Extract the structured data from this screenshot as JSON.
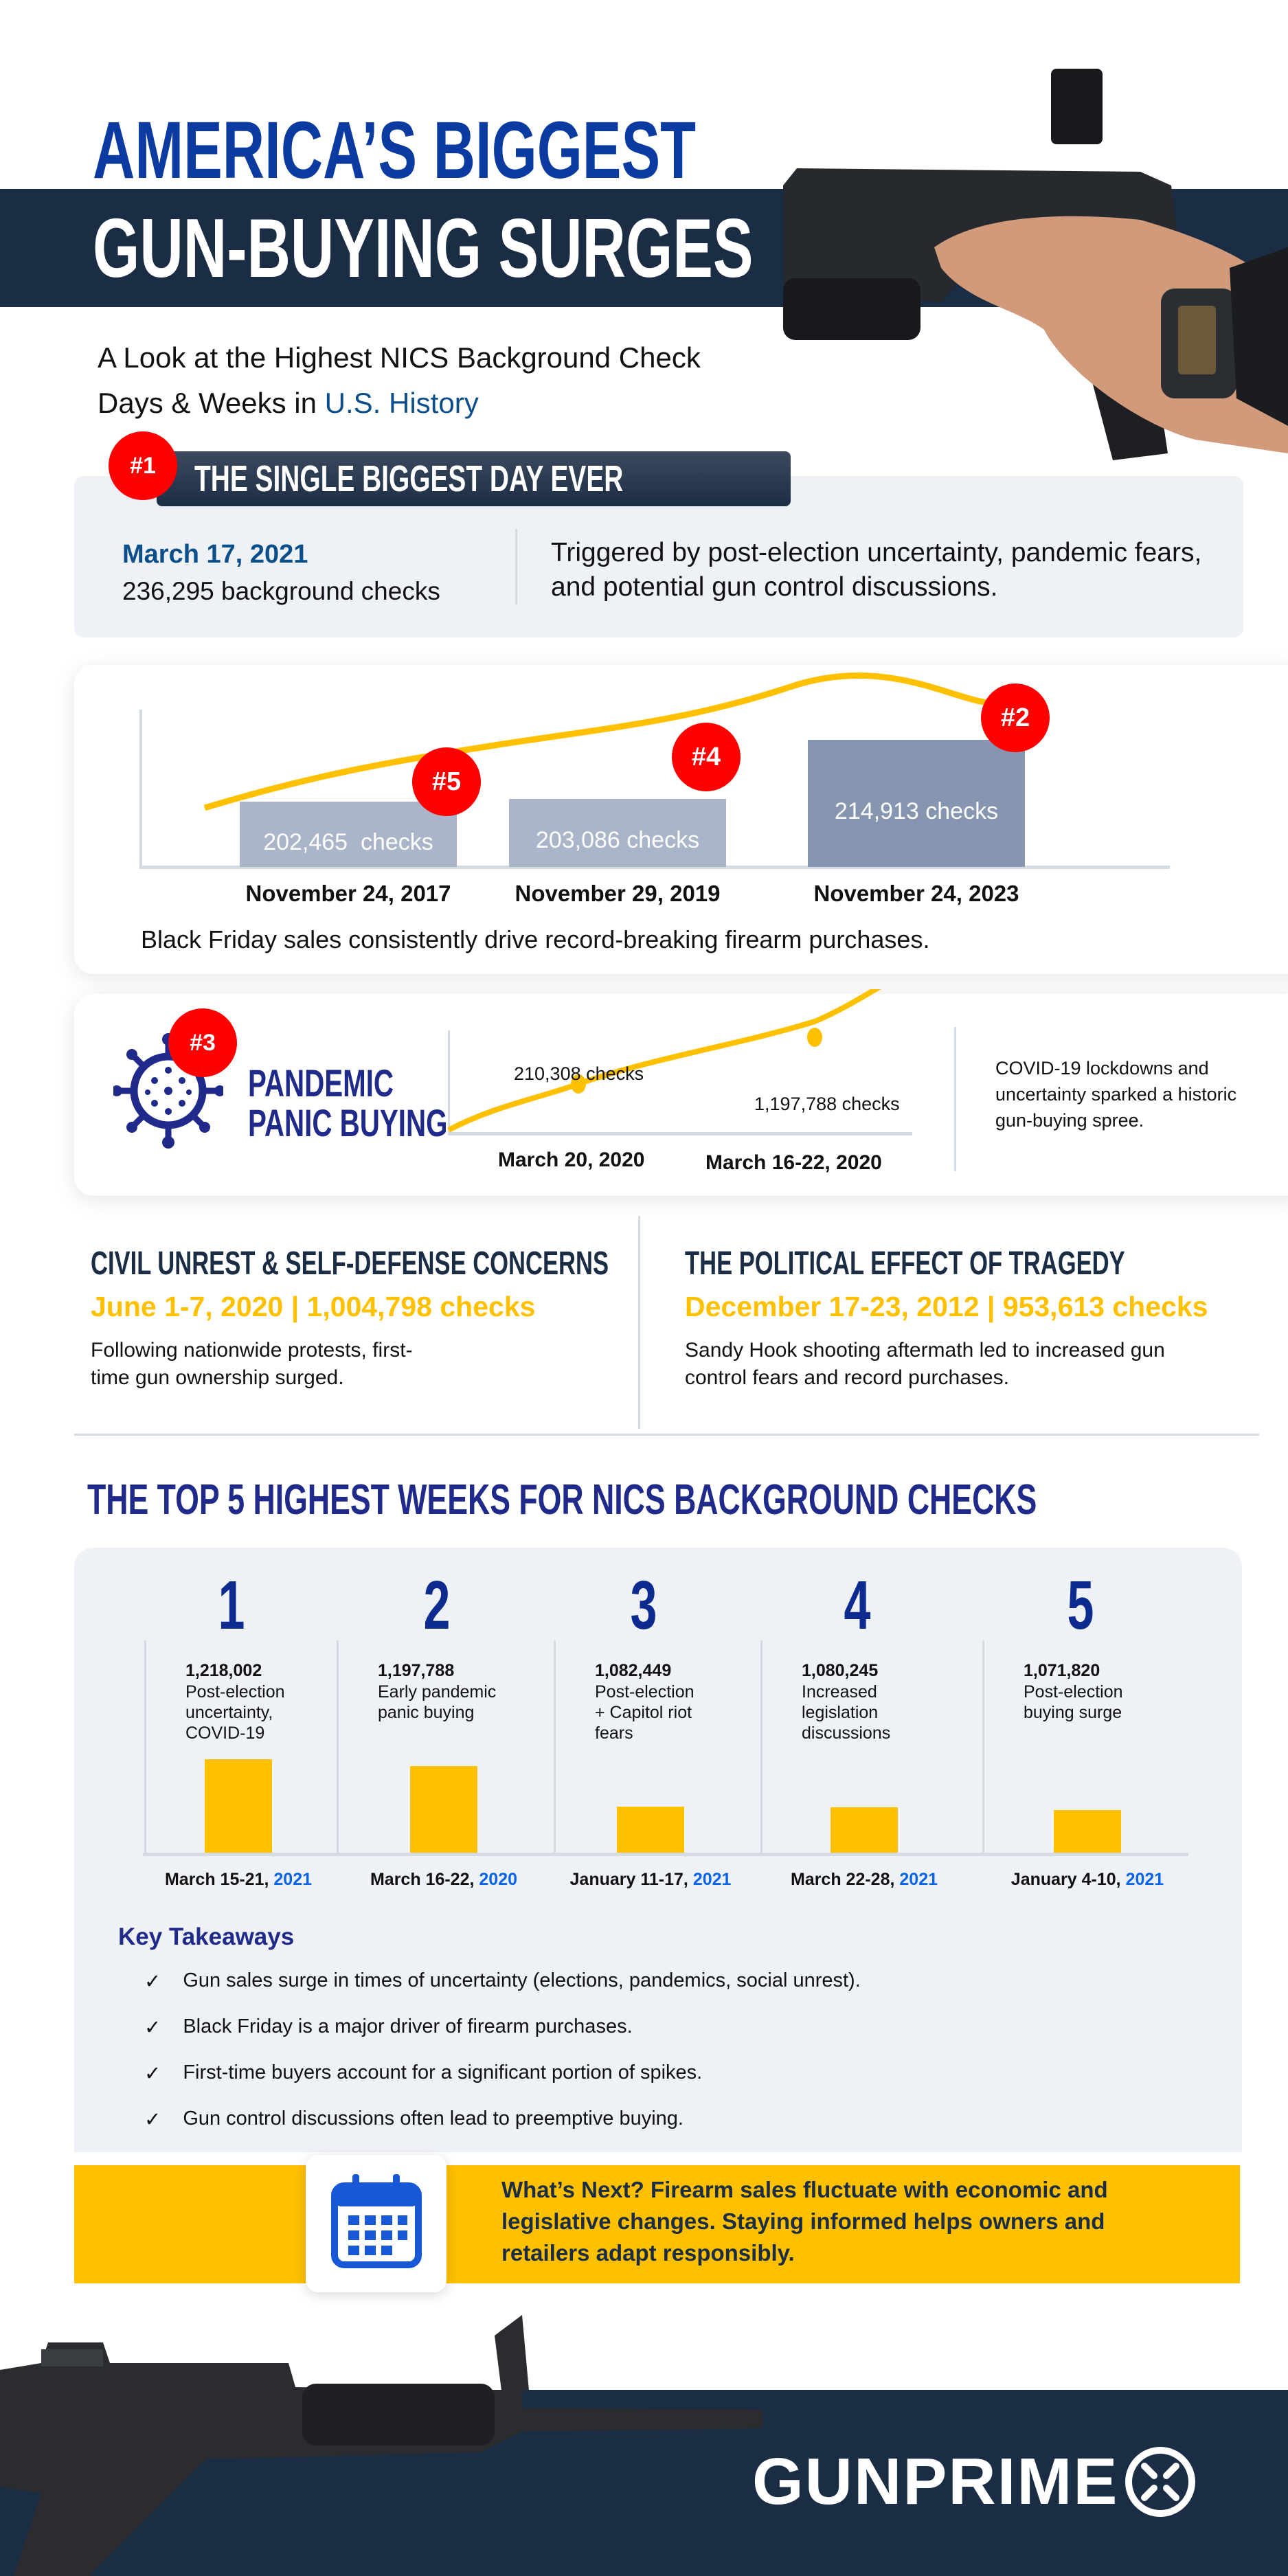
{
  "header": {
    "title_line1": "AMERICA’S BIGGEST",
    "title_line2": "GUN-BUYING SURGES",
    "subtitle_line1": "A Look at the Highest NICS Background Check",
    "subtitle_line2_prefix": "Days & Weeks in ",
    "subtitle_line2_highlight": "U.S. History"
  },
  "biggest_day": {
    "badge": "#1",
    "heading": "THE SINGLE BIGGEST DAY EVER",
    "date": "March 17, 2021",
    "checks": "236,295 background checks",
    "description": "Triggered by post-election uncertainty, pandemic fears, and potential gun control discussions."
  },
  "black_friday": {
    "bars": [
      {
        "badge": "#5",
        "label": "202,465  checks",
        "date": "November 24, 2017",
        "value": 202465
      },
      {
        "badge": "#4",
        "label": "203,086 checks",
        "date": "November 29, 2019",
        "value": 203086
      },
      {
        "badge": "#2",
        "label": "214,913 checks",
        "date": "November 24, 2023",
        "value": 214913
      }
    ],
    "caption": "Black Friday sales consistently drive record-breaking firearm purchases.",
    "colors": {
      "bar": "#aab5c9",
      "bar_highlight": "#8796b0",
      "line": "#ffc000"
    }
  },
  "pandemic": {
    "badge": "#3",
    "icon": "virus-icon",
    "title_line1": "PANDEMIC",
    "title_line2": "PANIC BUYING",
    "points": [
      {
        "label": "210,308 checks",
        "date": "March 20, 2020"
      },
      {
        "label": "1,197,788 checks",
        "date": "March 16-22, 2020"
      }
    ],
    "description": "COVID-19 lockdowns and uncertainty sparked a historic gun-buying spree."
  },
  "civil_unrest": {
    "heading": "CIVIL UNREST & SELF-DEFENSE CONCERNS",
    "stat": "June 1-7, 2020 | 1,004,798 checks",
    "text_line1": "Following nationwide protests, first-",
    "text_line2": "time gun ownership surged."
  },
  "tragedy": {
    "heading": "THE POLITICAL EFFECT OF TRAGEDY",
    "stat": "December 17-23, 2012 | 953,613 checks",
    "text_line1": "Sandy Hook shooting aftermath led to increased gun",
    "text_line2": "control fears and record purchases."
  },
  "top5": {
    "heading": "THE TOP 5 HIGHEST WEEKS FOR NICS BACKGROUND CHECKS",
    "weeks": [
      {
        "rank": "1",
        "value": "1,218,002",
        "reason": [
          "Post-election",
          "uncertainty,",
          "COVID-19"
        ],
        "dates": "March 15-21, ",
        "year": "2021",
        "checks": 1218002
      },
      {
        "rank": "2",
        "value": "1,197,788",
        "reason": [
          "Early pandemic",
          "panic buying"
        ],
        "dates": "March 16-22, ",
        "year": "2020",
        "checks": 1197788
      },
      {
        "rank": "3",
        "value": "1,082,449",
        "reason": [
          "Post-election",
          "+ Capitol riot",
          "fears"
        ],
        "dates": "January 11-17, ",
        "year": "2021",
        "checks": 1082449
      },
      {
        "rank": "4",
        "value": "1,080,245",
        "reason": [
          "Increased",
          "legislation",
          "discussions"
        ],
        "dates": "March 22-28, ",
        "year": "2021",
        "checks": 1080245
      },
      {
        "rank": "5",
        "value": "1,071,820",
        "reason": [
          "Post-election",
          "buying surge"
        ],
        "dates": "January 4-10, ",
        "year": "2021",
        "checks": 1071820
      }
    ],
    "bar_color": "#ffc000"
  },
  "takeaways": {
    "heading": "Key Takeaways",
    "items": [
      "Gun sales surge in times of uncertainty (elections, pandemics, social unrest).",
      "Black Friday is a major driver of firearm purchases.",
      "First-time buyers account for a significant portion of spikes.",
      "Gun control discussions often lead to preemptive buying."
    ]
  },
  "whats_next": {
    "icon": "calendar-icon",
    "line1": "What’s Next? Firearm sales fluctuate with economic and",
    "line2": "legislative changes. Staying informed helps owners and",
    "line3": "retailers adapt responsibly."
  },
  "footer": {
    "logo": "GUNPRIME"
  },
  "colors": {
    "navy": "#1b2d45",
    "blue": "#0b3aa0",
    "accent_blue": "#0b64e8",
    "yellow": "#ffc000",
    "red": "#ff0000",
    "panel": "#eef1f6"
  }
}
